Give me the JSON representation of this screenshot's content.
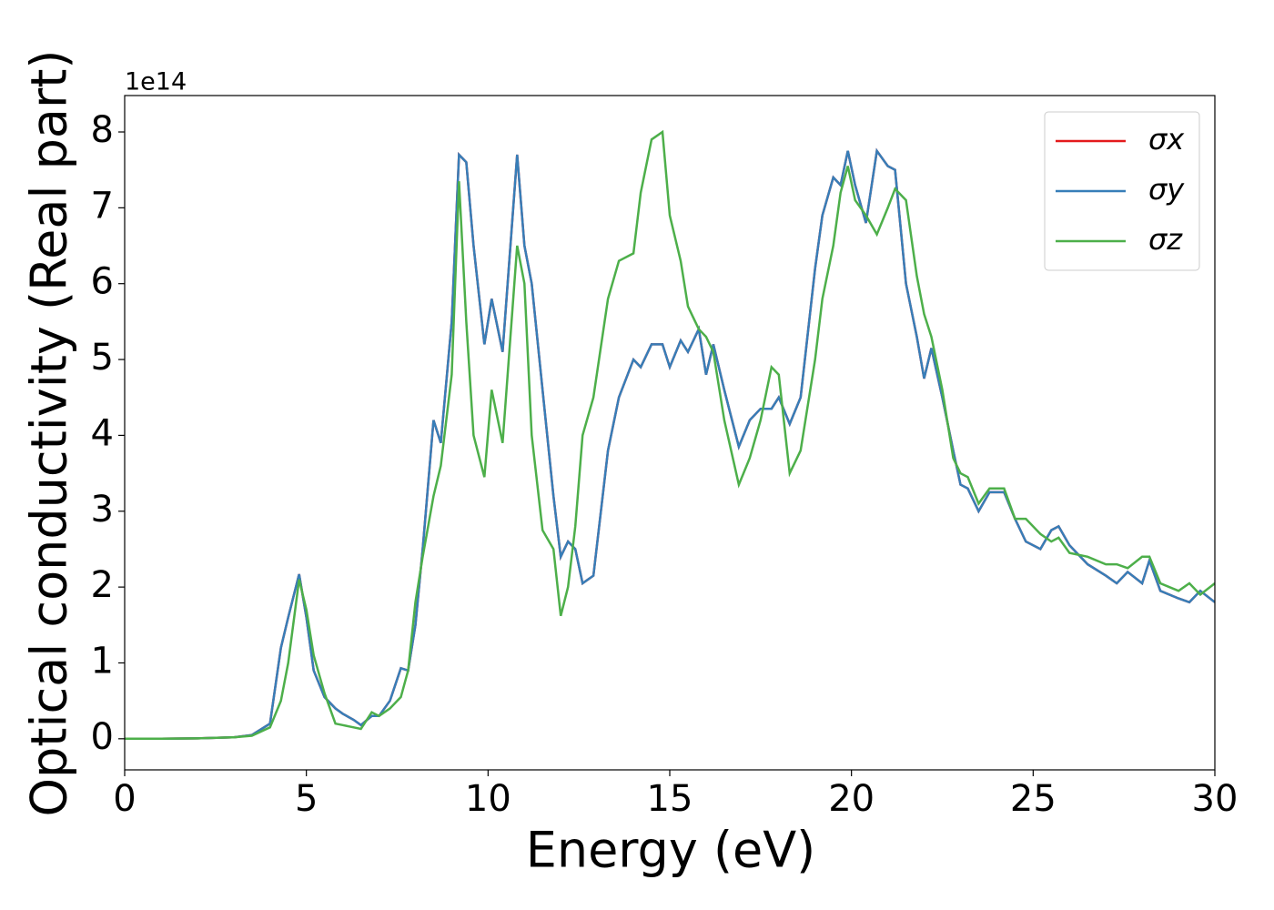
{
  "chart_data": {
    "type": "line",
    "xlabel": "Energy (eV)",
    "ylabel": "Optical conductivity (Real part)",
    "y_offset_label": "1e14",
    "x": [
      0,
      1,
      2,
      3,
      3.5,
      4,
      4.3,
      4.5,
      4.8,
      5.0,
      5.2,
      5.5,
      5.8,
      6.0,
      6.3,
      6.5,
      6.8,
      7.0,
      7.3,
      7.6,
      7.8,
      8.0,
      8.2,
      8.5,
      8.7,
      9.0,
      9.2,
      9.4,
      9.6,
      9.9,
      10.1,
      10.4,
      10.8,
      11.0,
      11.2,
      11.5,
      11.8,
      12.0,
      12.2,
      12.4,
      12.6,
      12.9,
      13.3,
      13.6,
      14.0,
      14.2,
      14.5,
      14.8,
      15.0,
      15.3,
      15.5,
      15.8,
      16.0,
      16.2,
      16.5,
      16.9,
      17.2,
      17.5,
      17.8,
      18.0,
      18.3,
      18.6,
      19.0,
      19.2,
      19.5,
      19.7,
      19.9,
      20.1,
      20.4,
      20.7,
      21.0,
      21.2,
      21.5,
      21.8,
      22.0,
      22.2,
      22.5,
      22.8,
      23.0,
      23.2,
      23.5,
      23.8,
      24.2,
      24.5,
      24.8,
      25.2,
      25.5,
      25.7,
      26.0,
      26.5,
      27.0,
      27.3,
      27.6,
      28.0,
      28.2,
      28.5,
      29.0,
      29.3,
      29.6,
      30
    ],
    "series": [
      {
        "name": "σx",
        "color": "#e41a1c",
        "values": [
          0,
          0,
          0.005,
          0.02,
          0.05,
          0.2,
          1.2,
          1.6,
          2.17,
          1.6,
          0.9,
          0.55,
          0.4,
          0.33,
          0.25,
          0.18,
          0.3,
          0.3,
          0.5,
          0.93,
          0.9,
          1.5,
          2.5,
          4.2,
          3.9,
          5.5,
          7.7,
          7.6,
          6.5,
          5.2,
          5.8,
          5.1,
          7.7,
          6.5,
          6.0,
          4.6,
          3.2,
          2.4,
          2.6,
          2.5,
          2.05,
          2.15,
          3.8,
          4.5,
          5.0,
          4.9,
          5.2,
          5.2,
          4.9,
          5.25,
          5.1,
          5.4,
          4.8,
          5.2,
          4.6,
          3.85,
          4.2,
          4.35,
          4.35,
          4.5,
          4.15,
          4.5,
          6.2,
          6.9,
          7.4,
          7.3,
          7.75,
          7.3,
          6.8,
          7.75,
          7.55,
          7.5,
          6.0,
          5.3,
          4.75,
          5.15,
          4.5,
          3.8,
          3.35,
          3.3,
          3.0,
          3.25,
          3.25,
          2.9,
          2.6,
          2.5,
          2.75,
          2.8,
          2.55,
          2.3,
          2.15,
          2.05,
          2.2,
          2.05,
          2.35,
          1.95,
          1.85,
          1.8,
          1.95,
          1.8
        ]
      },
      {
        "name": "σy",
        "color": "#377eb8",
        "values": [
          0,
          0,
          0.005,
          0.02,
          0.05,
          0.2,
          1.2,
          1.6,
          2.17,
          1.6,
          0.9,
          0.55,
          0.4,
          0.33,
          0.25,
          0.18,
          0.3,
          0.3,
          0.5,
          0.93,
          0.9,
          1.5,
          2.5,
          4.2,
          3.9,
          5.5,
          7.7,
          7.6,
          6.5,
          5.2,
          5.8,
          5.1,
          7.7,
          6.5,
          6.0,
          4.6,
          3.2,
          2.4,
          2.6,
          2.5,
          2.05,
          2.15,
          3.8,
          4.5,
          5.0,
          4.9,
          5.2,
          5.2,
          4.9,
          5.25,
          5.1,
          5.4,
          4.8,
          5.2,
          4.6,
          3.85,
          4.2,
          4.35,
          4.35,
          4.5,
          4.15,
          4.5,
          6.2,
          6.9,
          7.4,
          7.3,
          7.75,
          7.3,
          6.8,
          7.75,
          7.55,
          7.5,
          6.0,
          5.3,
          4.75,
          5.15,
          4.5,
          3.8,
          3.35,
          3.3,
          3.0,
          3.25,
          3.25,
          2.9,
          2.6,
          2.5,
          2.75,
          2.8,
          2.55,
          2.3,
          2.15,
          2.05,
          2.2,
          2.05,
          2.35,
          1.95,
          1.85,
          1.8,
          1.95,
          1.8
        ]
      },
      {
        "name": "σz",
        "color": "#4daf4a",
        "values": [
          0,
          0,
          0.005,
          0.02,
          0.04,
          0.15,
          0.5,
          1.0,
          2.1,
          1.7,
          1.1,
          0.6,
          0.2,
          0.18,
          0.15,
          0.13,
          0.35,
          0.3,
          0.4,
          0.55,
          0.9,
          1.8,
          2.4,
          3.2,
          3.6,
          4.8,
          7.35,
          5.5,
          4.0,
          3.45,
          4.6,
          3.9,
          6.5,
          6.0,
          4.0,
          2.75,
          2.5,
          1.62,
          2.0,
          2.8,
          4.0,
          4.5,
          5.8,
          6.3,
          6.4,
          7.2,
          7.9,
          8.0,
          6.9,
          6.3,
          5.7,
          5.4,
          5.3,
          5.1,
          4.2,
          3.35,
          3.7,
          4.2,
          4.9,
          4.8,
          3.5,
          3.8,
          5.0,
          5.8,
          6.5,
          7.2,
          7.55,
          7.1,
          6.9,
          6.65,
          7.0,
          7.25,
          7.1,
          6.1,
          5.6,
          5.3,
          4.6,
          3.7,
          3.5,
          3.45,
          3.1,
          3.3,
          3.3,
          2.9,
          2.9,
          2.7,
          2.6,
          2.65,
          2.45,
          2.4,
          2.3,
          2.3,
          2.25,
          2.4,
          2.4,
          2.05,
          1.95,
          2.05,
          1.9,
          2.05
        ]
      }
    ],
    "xlim": [
      0,
      30
    ],
    "xticks": [
      0,
      5,
      10,
      15,
      20,
      25,
      30
    ],
    "ylim": [
      -0.41,
      8.48
    ],
    "yticks": [
      0,
      1,
      2,
      3,
      4,
      5,
      6,
      7,
      8
    ],
    "grid": false,
    "legend": "upper right"
  }
}
